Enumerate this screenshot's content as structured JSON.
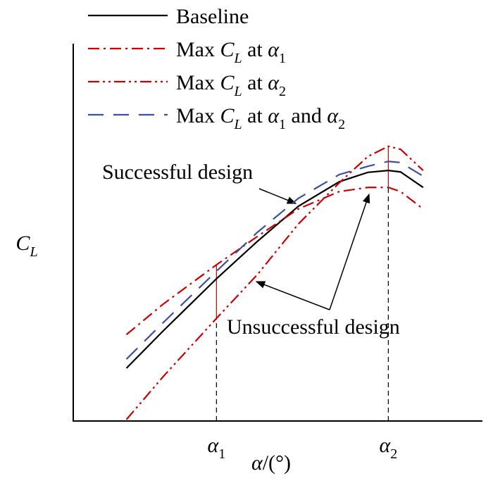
{
  "chart_data": {
    "type": "line",
    "x_label": "α/(°)",
    "y_label": "CL",
    "x": [
      13,
      22,
      35,
      45,
      55,
      65,
      72,
      77,
      80,
      85.5
    ],
    "xlim": [
      0,
      100
    ],
    "ylim": [
      0,
      100
    ],
    "xticks": [
      {
        "value": 35,
        "label": "α1"
      },
      {
        "value": 77,
        "label": "α2"
      }
    ],
    "series": [
      {
        "name": "Baseline",
        "color": "#000000",
        "dash": "none",
        "values": [
          14.0,
          23.9,
          37.7,
          47.6,
          56.9,
          63.4,
          65.9,
          66.4,
          66.0,
          61.9
        ]
      },
      {
        "name": "Max CL at α1",
        "color": "#cc0000",
        "dash": "16 6 3 6",
        "values": [
          22.9,
          31.0,
          41.4,
          48.9,
          56.2,
          60.8,
          61.9,
          61.9,
          60.8,
          56.2
        ]
      },
      {
        "name": "Max CL at α2",
        "color": "#cc0000",
        "dash": "16 5 3 5 3 5",
        "values": [
          0.4,
          11.8,
          27.2,
          38.8,
          52.2,
          63.1,
          70.1,
          72.8,
          72.0,
          66.4
        ]
      },
      {
        "name": "Max CL at α1 and α2",
        "color": "#3c4fa0",
        "dash": "22 14",
        "values": [
          16.4,
          26.1,
          39.7,
          50.0,
          59.0,
          65.3,
          67.5,
          68.8,
          68.5,
          64.9
        ]
      }
    ],
    "annotations": [
      "Successful design",
      "Unsuccessful design"
    ]
  }
}
